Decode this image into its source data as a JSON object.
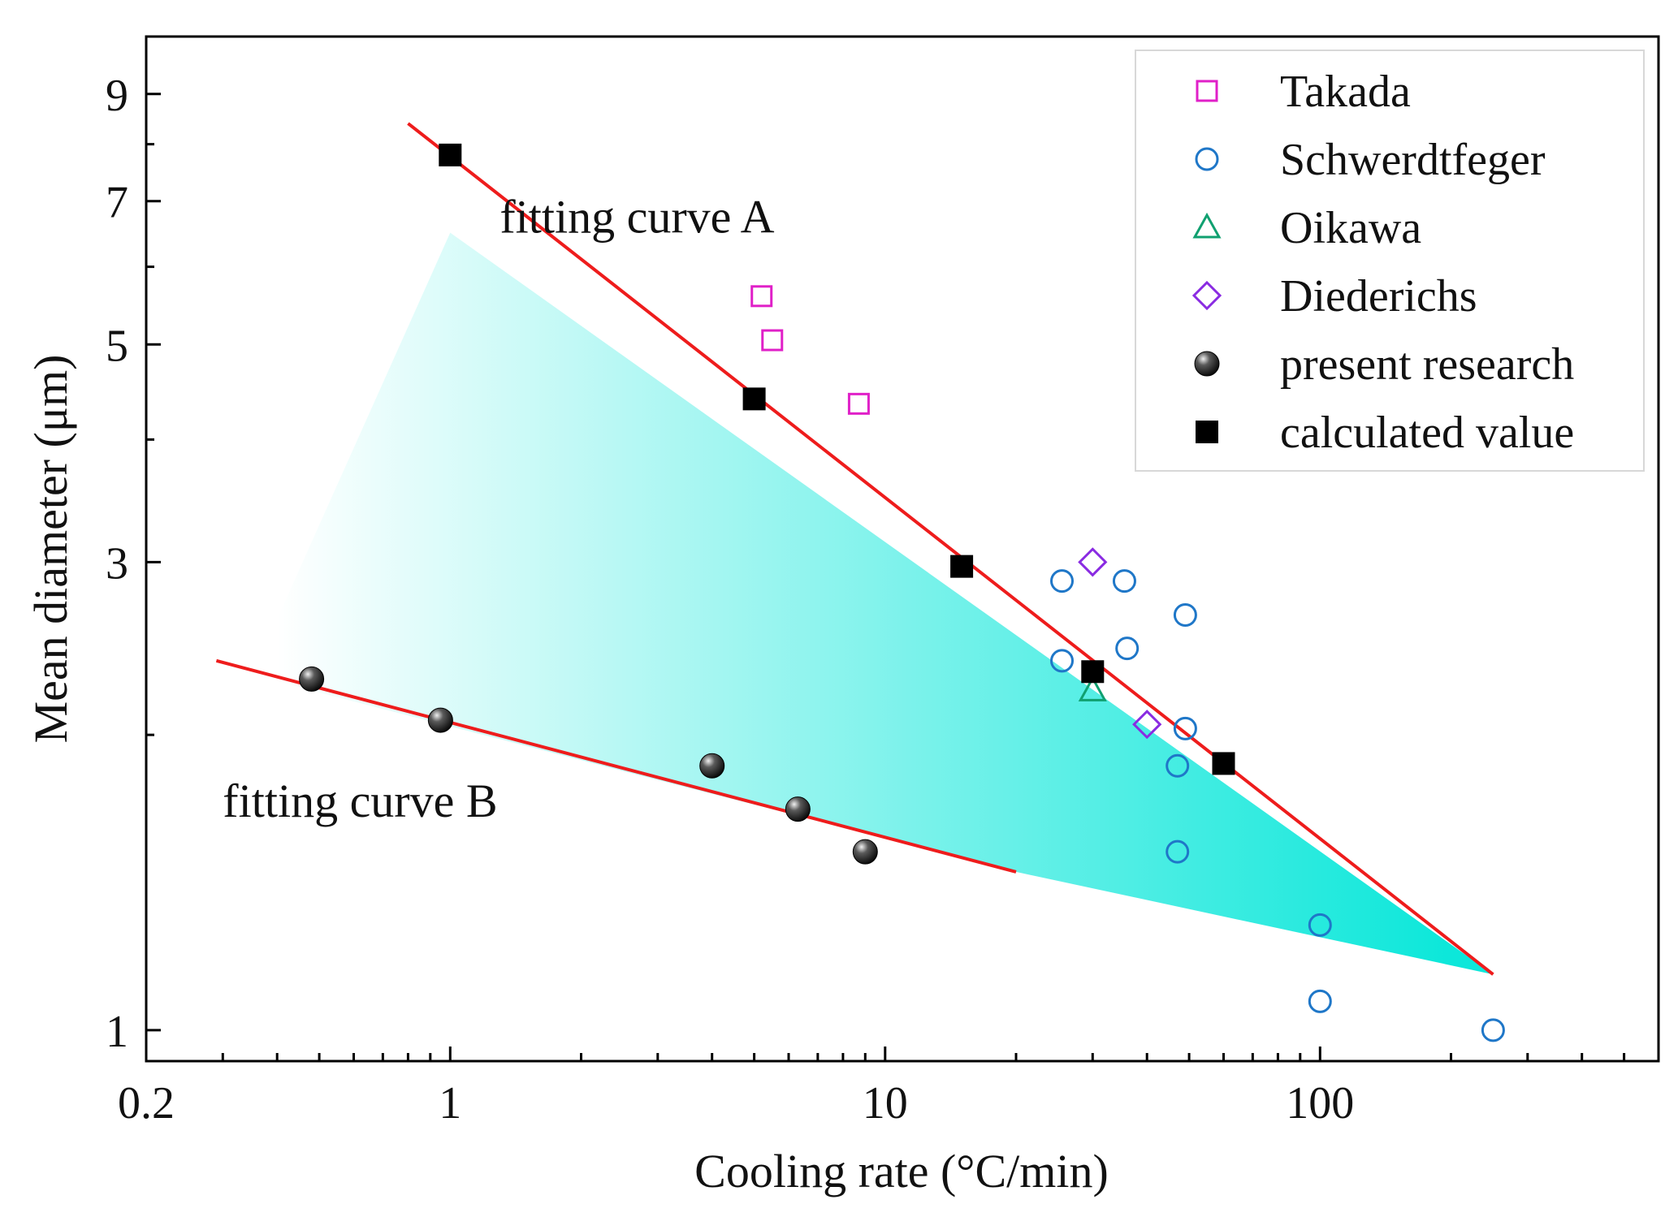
{
  "chart_data": {
    "type": "scatter",
    "title": "",
    "xlabel": "Cooling rate (°C/min)",
    "ylabel": "Mean diameter (μm)",
    "xscale": "log",
    "yscale": "log",
    "xlim": [
      0.2,
      600
    ],
    "ylim": [
      0.93,
      10.3
    ],
    "xticks": [
      {
        "value": 0.2,
        "label": "0.2"
      },
      {
        "value": 1,
        "label": "1"
      },
      {
        "value": 10,
        "label": "10"
      },
      {
        "value": 100,
        "label": "100"
      }
    ],
    "yticks": [
      {
        "value": 1,
        "label": "1"
      },
      {
        "value": 3,
        "label": "3"
      },
      {
        "value": 5,
        "label": "5"
      },
      {
        "value": 7,
        "label": "7"
      },
      {
        "value": 9,
        "label": "9"
      }
    ],
    "legend_position": "top-right",
    "series": [
      {
        "name": "Takada",
        "marker": "square-open",
        "color": "#e020c8",
        "points": [
          [
            5.2,
            5.6
          ],
          [
            5.5,
            5.05
          ],
          [
            8.7,
            4.35
          ]
        ]
      },
      {
        "name": "Schwerdtfeger",
        "marker": "circle-open",
        "color": "#1f77c8",
        "points": [
          [
            25.5,
            2.87
          ],
          [
            35.5,
            2.87
          ],
          [
            49,
            2.65
          ],
          [
            25.5,
            2.38
          ],
          [
            36,
            2.45
          ],
          [
            49,
            2.03
          ],
          [
            47,
            1.86
          ],
          [
            47,
            1.52
          ],
          [
            100,
            1.28
          ],
          [
            100,
            1.07
          ],
          [
            250,
            1.0
          ]
        ]
      },
      {
        "name": "Oikawa",
        "marker": "triangle-open",
        "color": "#10a070",
        "points": [
          [
            30,
            2.22
          ]
        ]
      },
      {
        "name": "Diederichs",
        "marker": "diamond-open",
        "color": "#8a2be2",
        "points": [
          [
            30,
            3.0
          ],
          [
            40,
            2.05
          ]
        ]
      },
      {
        "name": "present research",
        "marker": "sphere",
        "color": "#111111",
        "points": [
          [
            0.48,
            2.28
          ],
          [
            0.95,
            2.07
          ],
          [
            4,
            1.86
          ],
          [
            6.3,
            1.68
          ],
          [
            9,
            1.52
          ]
        ]
      },
      {
        "name": "calculated value",
        "marker": "square-filled",
        "color": "#000000",
        "points": [
          [
            1,
            7.8
          ],
          [
            5,
            4.4
          ],
          [
            15,
            2.97
          ],
          [
            30,
            2.32
          ],
          [
            60,
            1.87
          ]
        ]
      }
    ],
    "fit_lines": [
      {
        "name": "fitting curve A",
        "color": "#ee1c1c",
        "from": [
          0.8,
          8.4
        ],
        "to": [
          250,
          1.14
        ]
      },
      {
        "name": "fitting curve B",
        "color": "#ee1c1c",
        "from": [
          0.29,
          2.38
        ],
        "to": [
          20,
          1.45
        ]
      }
    ],
    "annotations": [
      {
        "text": "fitting curve A",
        "x": 1.3,
        "y": 6.5
      },
      {
        "text": "fitting curve B",
        "x": 0.3,
        "y": 1.65
      }
    ],
    "shaded_region": {
      "color": "#00e6d8",
      "vertices": [
        [
          0.35,
          2.3
        ],
        [
          1,
          6.5
        ],
        [
          250,
          1.14
        ],
        [
          20,
          1.45
        ]
      ]
    }
  }
}
